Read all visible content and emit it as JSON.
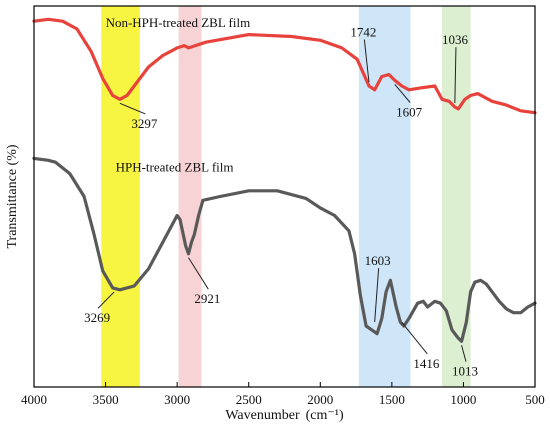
{
  "chart_data": {
    "type": "line",
    "title": "",
    "xlabel": "Wavenumber",
    "xlabel_unit": "(cm⁻¹)",
    "ylabel": "Transmittance (%)",
    "x_reversed": true,
    "xlim": [
      4000,
      500
    ],
    "xticks": [
      4000,
      3500,
      3000,
      2500,
      2000,
      1500,
      1000,
      500
    ],
    "y_tick_labels_shown": false,
    "grid": false,
    "highlight_bands": [
      {
        "from": 3530,
        "to": 3260,
        "color": "#f7f542"
      },
      {
        "from": 2990,
        "to": 2830,
        "color": "#f8d3d6"
      },
      {
        "from": 1730,
        "to": 1370,
        "color": "#cfe6f8"
      },
      {
        "from": 1150,
        "to": 950,
        "color": "#dcefd0"
      }
    ],
    "series": [
      {
        "name": "Non-HPH-treated ZBL film",
        "color": "#e8423c",
        "points": [
          [
            4000,
            96
          ],
          [
            3900,
            96.5
          ],
          [
            3800,
            96
          ],
          [
            3700,
            94
          ],
          [
            3600,
            88
          ],
          [
            3520,
            81
          ],
          [
            3450,
            76.5
          ],
          [
            3400,
            75.5
          ],
          [
            3350,
            76.5
          ],
          [
            3300,
            79
          ],
          [
            3200,
            84
          ],
          [
            3100,
            87
          ],
          [
            3000,
            89
          ],
          [
            2950,
            89.6
          ],
          [
            2921,
            89
          ],
          [
            2880,
            89.5
          ],
          [
            2800,
            90.5
          ],
          [
            2500,
            92.5
          ],
          [
            2200,
            92
          ],
          [
            2000,
            91
          ],
          [
            1850,
            89
          ],
          [
            1742,
            86
          ],
          [
            1660,
            79
          ],
          [
            1620,
            78
          ],
          [
            1570,
            81.5
          ],
          [
            1520,
            82
          ],
          [
            1480,
            80.5
          ],
          [
            1430,
            79
          ],
          [
            1380,
            78
          ],
          [
            1300,
            78.5
          ],
          [
            1200,
            79
          ],
          [
            1150,
            75.5
          ],
          [
            1100,
            75
          ],
          [
            1060,
            73.5
          ],
          [
            1036,
            73
          ],
          [
            990,
            75.5
          ],
          [
            950,
            76.5
          ],
          [
            900,
            77
          ],
          [
            850,
            76
          ],
          [
            800,
            75
          ],
          [
            700,
            74
          ],
          [
            600,
            72.5
          ],
          [
            500,
            72
          ]
        ]
      },
      {
        "name": "HPH-treated ZBL film",
        "color": "#595959",
        "points": [
          [
            4000,
            60
          ],
          [
            3900,
            59.5
          ],
          [
            3850,
            59
          ],
          [
            3750,
            56
          ],
          [
            3650,
            50
          ],
          [
            3580,
            40
          ],
          [
            3520,
            30.5
          ],
          [
            3450,
            26
          ],
          [
            3400,
            25.5
          ],
          [
            3300,
            26.5
          ],
          [
            3200,
            31
          ],
          [
            3100,
            38
          ],
          [
            3000,
            45
          ],
          [
            2980,
            44
          ],
          [
            2940,
            37
          ],
          [
            2921,
            35
          ],
          [
            2900,
            38
          ],
          [
            2880,
            40
          ],
          [
            2850,
            45
          ],
          [
            2820,
            49
          ],
          [
            2700,
            50
          ],
          [
            2500,
            51.5
          ],
          [
            2300,
            51.5
          ],
          [
            2100,
            49.5
          ],
          [
            2000,
            47
          ],
          [
            1900,
            45
          ],
          [
            1800,
            41
          ],
          [
            1760,
            35
          ],
          [
            1720,
            24
          ],
          [
            1680,
            16
          ],
          [
            1640,
            15
          ],
          [
            1603,
            14
          ],
          [
            1570,
            18
          ],
          [
            1540,
            25
          ],
          [
            1510,
            28
          ],
          [
            1470,
            21
          ],
          [
            1440,
            17
          ],
          [
            1416,
            16
          ],
          [
            1380,
            18
          ],
          [
            1320,
            22
          ],
          [
            1280,
            22.5
          ],
          [
            1250,
            21
          ],
          [
            1200,
            22.5
          ],
          [
            1160,
            22
          ],
          [
            1120,
            20
          ],
          [
            1080,
            15
          ],
          [
            1040,
            13
          ],
          [
            1013,
            12
          ],
          [
            980,
            17
          ],
          [
            950,
            25
          ],
          [
            920,
            27.5
          ],
          [
            880,
            28
          ],
          [
            840,
            27
          ],
          [
            800,
            25
          ],
          [
            750,
            22.5
          ],
          [
            700,
            20.5
          ],
          [
            650,
            19.5
          ],
          [
            600,
            19.5
          ],
          [
            550,
            21
          ],
          [
            500,
            22
          ]
        ]
      }
    ],
    "annotations": [
      {
        "text": "3297",
        "x": 3400,
        "y": 75.5
      },
      {
        "text": "1742",
        "x": 1660,
        "y": 79
      },
      {
        "text": "1607",
        "x": 1480,
        "y": 80.5
      },
      {
        "text": "1036",
        "x": 1060,
        "y": 73.5
      },
      {
        "text": "3269",
        "x": 3440,
        "y": 26
      },
      {
        "text": "2921",
        "x": 2921,
        "y": 35
      },
      {
        "text": "1603",
        "x": 1620,
        "y": 16
      },
      {
        "text": "1416",
        "x": 1430,
        "y": 18
      },
      {
        "text": "1013",
        "x": 1013,
        "y": 12
      }
    ]
  }
}
